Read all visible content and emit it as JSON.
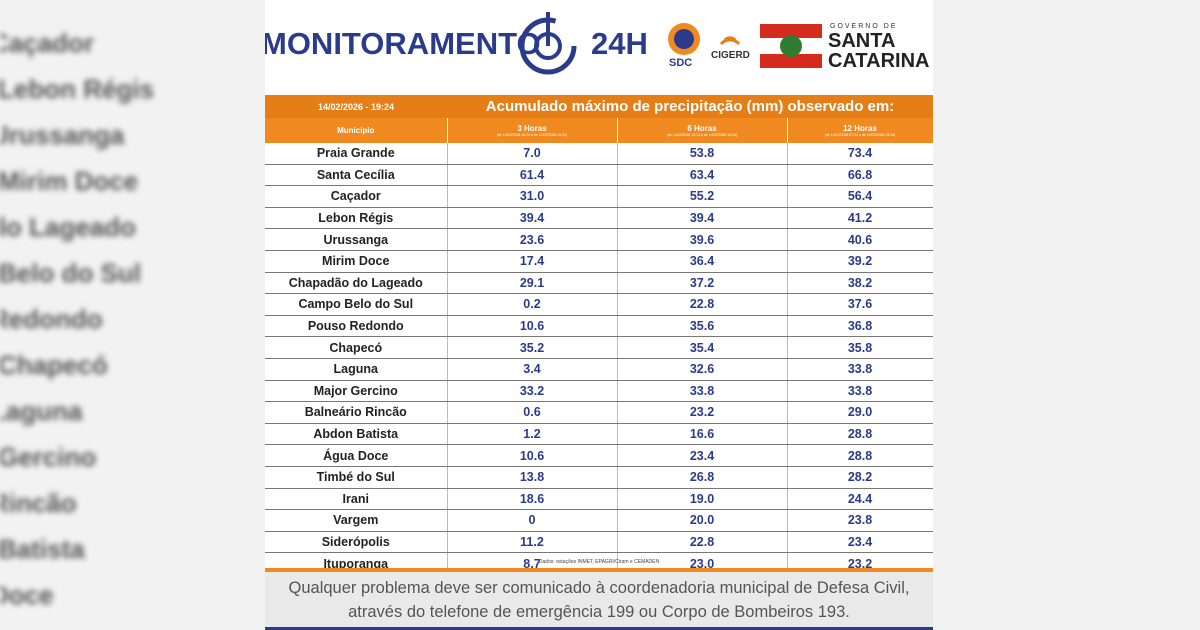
{
  "background": [
    "Caçador",
    "Lebon Régis",
    "Urussanga",
    "Mirim Doce",
    "do Lageado",
    "Belo do Sul",
    "Redondo",
    "Chapecó",
    "Laguna",
    "Gercino",
    "Rincão",
    "Batista",
    "Doce"
  ],
  "header": {
    "brand": "MONITORAMENTO",
    "brand_suffix": "24H",
    "sdc": "SDC",
    "cigerd": "CIGERD",
    "gov_small": "GOVERNO DE",
    "gov_line1": "SANTA",
    "gov_line2": "CATARINA"
  },
  "table": {
    "date": "14/02/2026 - 19:24",
    "title": "Acumulado máximo de precipitação (mm) observado em:",
    "columns": [
      "Município",
      "3 Horas",
      "6 Horas",
      "12 Horas"
    ],
    "column_notes": [
      "(de 14/02/2026 16:24 a de 14/02/2026 19:24)",
      "(de 14/02/2026 13:24 a de 14/02/2026 19:24)",
      "(de 14/02/2026 07:24 a de 14/02/2026 19:24)"
    ],
    "rows": [
      [
        "Praia Grande",
        "7.0",
        "53.8",
        "73.4"
      ],
      [
        "Santa Cecília",
        "61.4",
        "63.4",
        "66.8"
      ],
      [
        "Caçador",
        "31.0",
        "55.2",
        "56.4"
      ],
      [
        "Lebon Régis",
        "39.4",
        "39.4",
        "41.2"
      ],
      [
        "Urussanga",
        "23.6",
        "39.6",
        "40.6"
      ],
      [
        "Mirim Doce",
        "17.4",
        "36.4",
        "39.2"
      ],
      [
        "Chapadão do Lageado",
        "29.1",
        "37.2",
        "38.2"
      ],
      [
        "Campo Belo do Sul",
        "0.2",
        "22.8",
        "37.6"
      ],
      [
        "Pouso Redondo",
        "10.6",
        "35.6",
        "36.8"
      ],
      [
        "Chapecó",
        "35.2",
        "35.4",
        "35.8"
      ],
      [
        "Laguna",
        "3.4",
        "32.6",
        "33.8"
      ],
      [
        "Major Gercino",
        "33.2",
        "33.8",
        "33.8"
      ],
      [
        "Balneário Rincão",
        "0.6",
        "23.2",
        "29.0"
      ],
      [
        "Abdon Batista",
        "1.2",
        "16.6",
        "28.8"
      ],
      [
        "Água Doce",
        "10.6",
        "23.4",
        "28.8"
      ],
      [
        "Timbé do Sul",
        "13.8",
        "26.8",
        "28.2"
      ],
      [
        "Irani",
        "18.6",
        "19.0",
        "24.4"
      ],
      [
        "Vargem",
        "0",
        "20.0",
        "23.8"
      ],
      [
        "Siderópolis",
        "11.2",
        "22.8",
        "23.4"
      ],
      [
        "Ituporanga",
        "8.7",
        "23.0",
        "23.2"
      ]
    ],
    "source": "Dados: estações INMET, EPAGRI/Ciram e CEMADEN"
  },
  "footer": {
    "line1": "Qualquer problema deve ser comunicado à coordenadoria municipal de Defesa Civil,",
    "line2": "através do telefone de emergência 199 ou Corpo de Bombeiros 193."
  }
}
